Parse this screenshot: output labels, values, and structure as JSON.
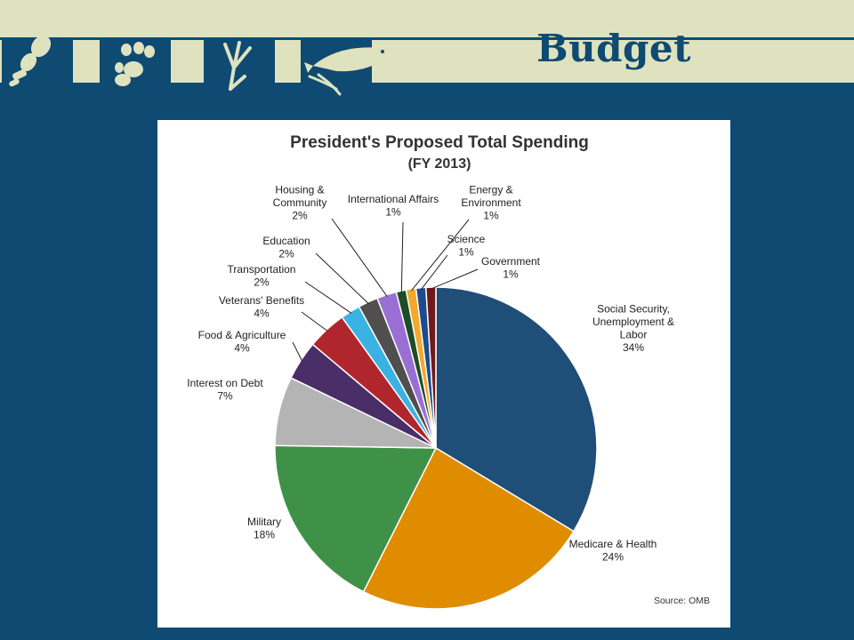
{
  "slide": {
    "title": "Budget"
  },
  "icons": [
    "footprint-icon",
    "paw-icon",
    "bird-track-icon",
    "fish-icon"
  ],
  "colors": {
    "background": "#0e4a72",
    "band": "#dfe2be"
  },
  "chart_data": {
    "type": "pie",
    "title": "President's Proposed Total Spending",
    "subtitle": "(FY 2013)",
    "source": "Source: OMB",
    "slices": [
      {
        "label": [
          "Social Security,",
          "Unemployment &",
          "Labor",
          "34%"
        ],
        "value": 34,
        "color": "#1f4e79"
      },
      {
        "label": [
          "Medicare & Health",
          "24%"
        ],
        "value": 24,
        "color": "#e08c00"
      },
      {
        "label": [
          "Military",
          "18%"
        ],
        "value": 18,
        "color": "#3f9147"
      },
      {
        "label": [
          "Interest on Debt",
          "7%"
        ],
        "value": 7,
        "color": "#b4b4b4"
      },
      {
        "label": [
          "Food & Agriculture",
          "4%"
        ],
        "value": 4,
        "color": "#4a2e68"
      },
      {
        "label": [
          "Veterans' Benefits",
          "4%"
        ],
        "value": 4,
        "color": "#b1262c"
      },
      {
        "label": [
          "Transportation",
          "2%"
        ],
        "value": 2,
        "color": "#3bb2e4"
      },
      {
        "label": [
          "Education",
          "2%"
        ],
        "value": 2,
        "color": "#4f4f4f"
      },
      {
        "label": [
          "Housing &",
          "Community",
          "2%"
        ],
        "value": 2,
        "color": "#9a6fd3"
      },
      {
        "label": [
          "International Affairs",
          "1%"
        ],
        "value": 1,
        "color": "#1c4d24"
      },
      {
        "label": [
          "Energy &",
          "Environment",
          "1%"
        ],
        "value": 1,
        "color": "#f4a82c"
      },
      {
        "label": [
          "Science",
          "1%"
        ],
        "value": 1,
        "color": "#1f4a8c"
      },
      {
        "label": [
          "Government",
          "1%"
        ],
        "value": 1,
        "color": "#6e1a1a"
      }
    ]
  }
}
